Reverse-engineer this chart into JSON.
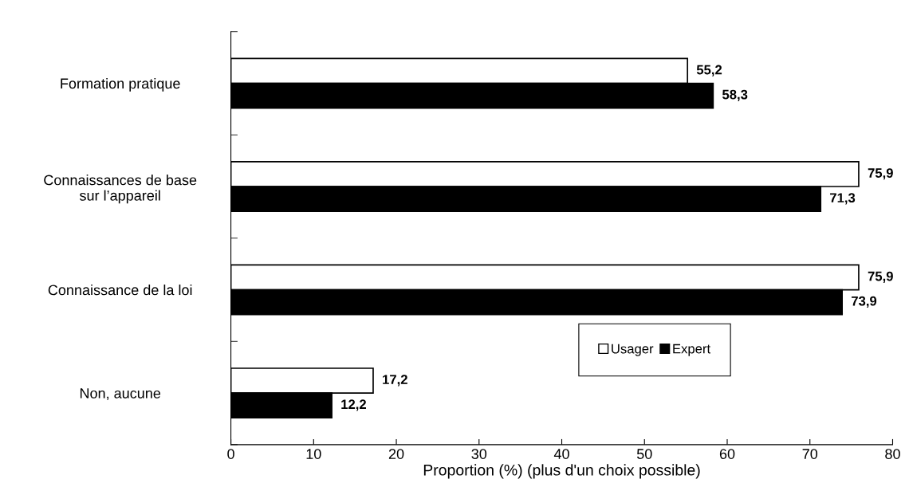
{
  "chart_data": {
    "type": "bar",
    "orientation": "horizontal",
    "categories": [
      "Formation pratique",
      "Connaissances de base\nsur l’appareil",
      "Connaissance de la loi",
      "Non, aucune"
    ],
    "series": [
      {
        "name": "Usager",
        "color": "#ffffff",
        "values": [
          55.2,
          75.9,
          75.9,
          17.2
        ],
        "value_labels": [
          "55,2",
          "75,9",
          "75,9",
          "17,2"
        ]
      },
      {
        "name": "Expert",
        "color": "#000000",
        "values": [
          58.3,
          71.3,
          73.9,
          12.2
        ],
        "value_labels": [
          "58,3",
          "71,3",
          "73,9",
          "12,2"
        ]
      }
    ],
    "xlabel": "Proportion (%) (plus d'un choix possible)",
    "xlim": [
      0,
      80
    ],
    "xticks": [
      0,
      10,
      20,
      30,
      40,
      50,
      60,
      70,
      80
    ],
    "grid": false,
    "legend": "lower right"
  }
}
